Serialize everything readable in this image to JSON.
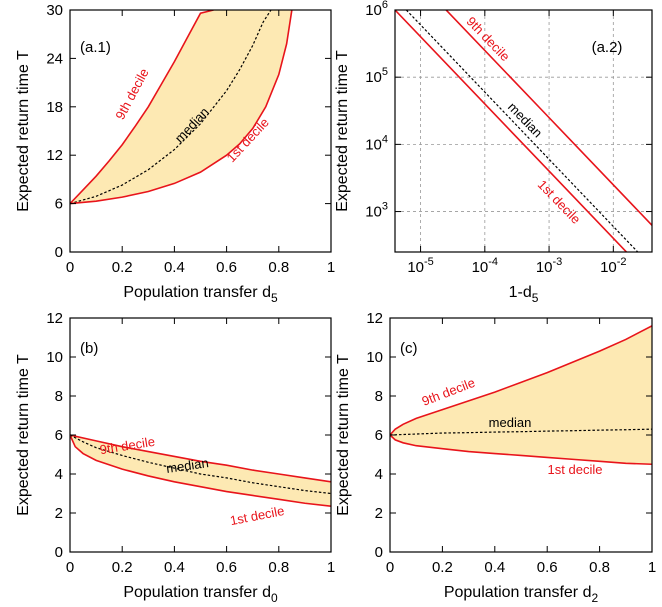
{
  "colors": {
    "band_fill": "#fde9b3",
    "decile_line": "#e8141b",
    "median_line": "#000000",
    "grid": "#999999"
  },
  "chart_data": [
    {
      "panel": "(a.1)",
      "type": "area",
      "xlabel": "Population transfer d",
      "xlabel_sub": "5",
      "ylabel": "Expected return time T",
      "xlim": [
        0,
        1
      ],
      "ylim": [
        0,
        30
      ],
      "xticks": [
        0,
        0.2,
        0.4,
        0.6,
        0.8,
        1
      ],
      "xtick_labels": [
        "0",
        "0.2",
        "0.4",
        "0.6",
        "0.8",
        "1"
      ],
      "yticks": [
        0,
        6,
        12,
        18,
        24,
        30
      ],
      "ytick_labels": [
        "0",
        "6",
        "12",
        "18",
        "24",
        "30"
      ],
      "grid": false,
      "series": [
        {
          "name": "9th decile",
          "x": [
            0,
            0.05,
            0.1,
            0.15,
            0.2,
            0.25,
            0.3,
            0.35,
            0.4,
            0.45,
            0.5,
            0.55
          ],
          "y": [
            6,
            7.7,
            9.4,
            11.3,
            13.3,
            15.6,
            18.0,
            20.8,
            23.6,
            26.6,
            29.6,
            30
          ]
        },
        {
          "name": "median",
          "x": [
            0,
            0.1,
            0.2,
            0.3,
            0.4,
            0.5,
            0.6,
            0.65,
            0.7,
            0.74,
            0.77
          ],
          "y": [
            6,
            6.9,
            8.3,
            10.2,
            12.7,
            15.9,
            20.0,
            22.6,
            25.6,
            28.5,
            30
          ]
        },
        {
          "name": "1st decile",
          "x": [
            0,
            0.1,
            0.2,
            0.3,
            0.4,
            0.5,
            0.6,
            0.65,
            0.7,
            0.75,
            0.8,
            0.83,
            0.85
          ],
          "y": [
            6,
            6.3,
            6.8,
            7.5,
            8.5,
            9.9,
            12.0,
            13.4,
            15.3,
            18.0,
            22.0,
            25.8,
            30
          ]
        }
      ]
    },
    {
      "panel": "(a.2)",
      "type": "line",
      "xlabel": "1-d",
      "xlabel_sub": "5",
      "ylabel": "Expected return time T",
      "xscale": "log",
      "yscale": "log",
      "xlim": [
        4e-06,
        0.04
      ],
      "ylim": [
        250,
        1000000
      ],
      "xticks": [
        1e-05,
        0.0001,
        0.001,
        0.01
      ],
      "xtick_labels": [
        {
          "base": "10",
          "exp": "-5"
        },
        {
          "base": "10",
          "exp": "-4"
        },
        {
          "base": "10",
          "exp": "-3"
        },
        {
          "base": "10",
          "exp": "-2"
        }
      ],
      "yticks": [
        1000,
        10000,
        100000,
        1000000
      ],
      "ytick_labels": [
        {
          "base": "10",
          "exp": "3"
        },
        {
          "base": "10",
          "exp": "4"
        },
        {
          "base": "10",
          "exp": "5"
        },
        {
          "base": "10",
          "exp": "6"
        }
      ],
      "grid": true,
      "series": [
        {
          "name": "9th decile",
          "x": [
            1e-05,
            0.001,
            0.04
          ],
          "y": [
            2500000,
            25000,
            625
          ]
        },
        {
          "name": "median",
          "x": [
            6e-06,
            0.001,
            0.04
          ],
          "y": [
            1000000,
            6000,
            150
          ]
        },
        {
          "name": "1st decile",
          "x": [
            4e-06,
            0.001,
            0.04
          ],
          "y": [
            1000000,
            4000,
            100
          ]
        }
      ]
    },
    {
      "panel": "(b)",
      "type": "area",
      "xlabel": "Population transfer d",
      "xlabel_sub": "0",
      "ylabel": "Expected return time T",
      "xlim": [
        0,
        1
      ],
      "ylim": [
        0,
        12
      ],
      "xticks": [
        0,
        0.2,
        0.4,
        0.6,
        0.8,
        1
      ],
      "xtick_labels": [
        "0",
        "0.2",
        "0.4",
        "0.6",
        "0.8",
        "1"
      ],
      "yticks": [
        0,
        2,
        4,
        6,
        8,
        10,
        12
      ],
      "ytick_labels": [
        "0",
        "2",
        "4",
        "6",
        "8",
        "10",
        "12"
      ],
      "grid": false,
      "series": [
        {
          "name": "9th decile",
          "x": [
            0,
            0.1,
            0.2,
            0.3,
            0.4,
            0.5,
            0.6,
            0.7,
            0.8,
            0.9,
            1
          ],
          "y": [
            6,
            5.7,
            5.4,
            5.15,
            4.9,
            4.65,
            4.45,
            4.2,
            4.0,
            3.8,
            3.6
          ]
        },
        {
          "name": "median",
          "x": [
            0,
            0.05,
            0.1,
            0.2,
            0.3,
            0.4,
            0.5,
            0.6,
            0.7,
            0.8,
            0.9,
            1
          ],
          "y": [
            6,
            5.65,
            5.35,
            4.95,
            4.6,
            4.3,
            4.0,
            3.8,
            3.55,
            3.35,
            3.15,
            3.0
          ]
        },
        {
          "name": "1st decile",
          "x": [
            0,
            0.02,
            0.05,
            0.1,
            0.2,
            0.3,
            0.4,
            0.5,
            0.6,
            0.7,
            0.8,
            0.9,
            1
          ],
          "y": [
            6,
            5.4,
            5.05,
            4.7,
            4.25,
            3.9,
            3.6,
            3.35,
            3.1,
            2.9,
            2.7,
            2.5,
            2.35
          ]
        }
      ]
    },
    {
      "panel": "(c)",
      "type": "area",
      "xlabel": "Population transfer d",
      "xlabel_sub": "2",
      "ylabel": "Expected return time T",
      "xlim": [
        0,
        1
      ],
      "ylim": [
        0,
        12
      ],
      "xticks": [
        0,
        0.2,
        0.4,
        0.6,
        0.8,
        1
      ],
      "xtick_labels": [
        "0",
        "0.2",
        "0.4",
        "0.6",
        "0.8",
        "1"
      ],
      "yticks": [
        0,
        2,
        4,
        6,
        8,
        10,
        12
      ],
      "ytick_labels": [
        "0",
        "2",
        "4",
        "6",
        "8",
        "10",
        "12"
      ],
      "grid": false,
      "series": [
        {
          "name": "9th decile",
          "x": [
            0,
            0.02,
            0.05,
            0.1,
            0.2,
            0.3,
            0.4,
            0.5,
            0.6,
            0.7,
            0.8,
            0.9,
            1
          ],
          "y": [
            6,
            6.3,
            6.55,
            6.85,
            7.3,
            7.75,
            8.2,
            8.7,
            9.2,
            9.75,
            10.3,
            10.9,
            11.6
          ]
        },
        {
          "name": "median",
          "x": [
            0,
            0.1,
            0.2,
            0.3,
            0.4,
            0.5,
            0.6,
            0.7,
            0.8,
            0.9,
            1
          ],
          "y": [
            6,
            6.05,
            6.1,
            6.12,
            6.15,
            6.17,
            6.2,
            6.22,
            6.25,
            6.27,
            6.3
          ]
        },
        {
          "name": "1st decile",
          "x": [
            0,
            0.02,
            0.05,
            0.1,
            0.2,
            0.3,
            0.4,
            0.5,
            0.6,
            0.7,
            0.8,
            0.9,
            1
          ],
          "y": [
            6,
            5.75,
            5.6,
            5.45,
            5.3,
            5.15,
            5.05,
            4.95,
            4.85,
            4.75,
            4.65,
            4.55,
            4.5
          ]
        }
      ]
    }
  ]
}
